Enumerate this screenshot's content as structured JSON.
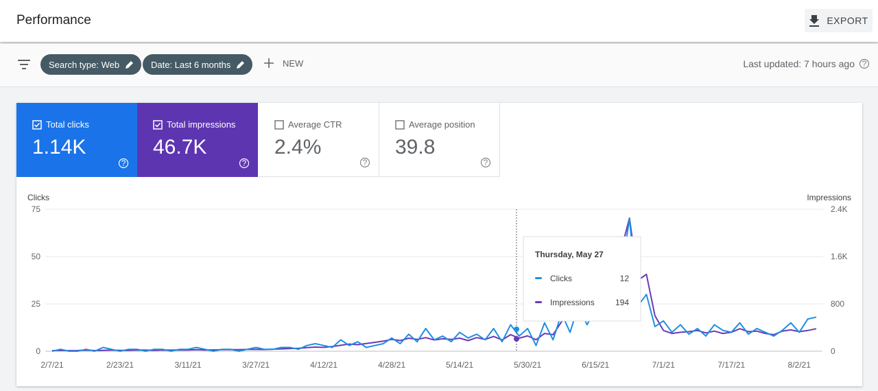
{
  "header": {
    "title": "Performance",
    "export": "EXPORT"
  },
  "filters": {
    "items": [
      "Search type: Web",
      "Date: Last 6 months"
    ],
    "new": "NEW",
    "last_updated": "Last updated: 7 hours ago"
  },
  "cards": [
    {
      "label": "Total clicks",
      "value": "1.14K"
    },
    {
      "label": "Total impressions",
      "value": "46.7K"
    },
    {
      "label": "Average CTR",
      "value": "2.4%"
    },
    {
      "label": "Average position",
      "value": "39.8"
    }
  ],
  "chart_data": {
    "type": "line",
    "y_label": "Clicks",
    "y2_label": "Impressions",
    "categories": [
      "2/7/21",
      null,
      null,
      null,
      null,
      null,
      null,
      null,
      "2/23/21",
      null,
      null,
      null,
      null,
      null,
      null,
      null,
      "3/11/21",
      null,
      null,
      null,
      null,
      null,
      null,
      null,
      "3/27/21",
      null,
      null,
      null,
      null,
      null,
      null,
      null,
      "4/12/21",
      null,
      null,
      null,
      null,
      null,
      null,
      null,
      "4/28/21",
      null,
      null,
      null,
      null,
      null,
      null,
      null,
      "5/14/21",
      null,
      null,
      null,
      null,
      null,
      null,
      null,
      "5/30/21",
      null,
      null,
      null,
      null,
      null,
      null,
      null,
      "6/15/21",
      null,
      null,
      null,
      null,
      null,
      null,
      null,
      "7/1/21",
      null,
      null,
      null,
      null,
      null,
      null,
      null,
      "7/17/21",
      null,
      null,
      null,
      null,
      null,
      null,
      null,
      "8/2/21",
      null,
      null
    ],
    "series": [
      {
        "name": "Clicks",
        "color": "#1e8fe0",
        "values": [
          0,
          1,
          0,
          0,
          1,
          0,
          2,
          1,
          0,
          1,
          1,
          0,
          1,
          1,
          0,
          1,
          1,
          2,
          1,
          0,
          1,
          1,
          0,
          1,
          2,
          1,
          1,
          2,
          2,
          1,
          3,
          4,
          3,
          2,
          6,
          3,
          5,
          2,
          3,
          4,
          7,
          4,
          9,
          5,
          12,
          6,
          8,
          5,
          10,
          7,
          9,
          6,
          12,
          5,
          14,
          8,
          12,
          3,
          15,
          6,
          20,
          10,
          24,
          14,
          22,
          28,
          18,
          40,
          70,
          24,
          30,
          13,
          16,
          10,
          14,
          9,
          12,
          8,
          14,
          11,
          10,
          15,
          9,
          12,
          10,
          8,
          11,
          15,
          10,
          17,
          18
        ]
      },
      {
        "name": "Impressions",
        "color": "#6a38b8",
        "axis": "y2",
        "values": [
          10,
          15,
          10,
          12,
          18,
          12,
          15,
          20,
          15,
          15,
          20,
          18,
          15,
          20,
          18,
          22,
          20,
          25,
          20,
          22,
          25,
          28,
          25,
          30,
          30,
          28,
          35,
          40,
          45,
          50,
          60,
          70,
          65,
          80,
          100,
          120,
          110,
          130,
          150,
          170,
          200,
          180,
          220,
          200,
          230,
          190,
          210,
          200,
          220,
          180,
          230,
          200,
          250,
          190,
          280,
          220,
          260,
          194,
          300,
          280,
          500,
          700,
          900,
          850,
          950,
          1100,
          1300,
          1700,
          2250,
          1200,
          1300,
          600,
          350,
          300,
          320,
          330,
          350,
          310,
          340,
          300,
          320,
          380,
          330,
          340,
          300,
          280,
          340,
          360,
          330,
          350,
          380
        ]
      }
    ],
    "ylim": [
      0,
      75
    ],
    "yticks": [
      0,
      25,
      50,
      75
    ],
    "y2lim": [
      0,
      2400
    ],
    "y2ticks": [
      0,
      800,
      {
        "value": 1600,
        "label": "1.6K"
      },
      {
        "value": 2400,
        "label": "2.4K"
      }
    ],
    "grid": true,
    "tooltip": {
      "date": "Thursday, May 27",
      "rows": [
        {
          "name": "Clicks",
          "value": 12
        },
        {
          "name": "Impressions",
          "value": 194
        }
      ]
    }
  }
}
